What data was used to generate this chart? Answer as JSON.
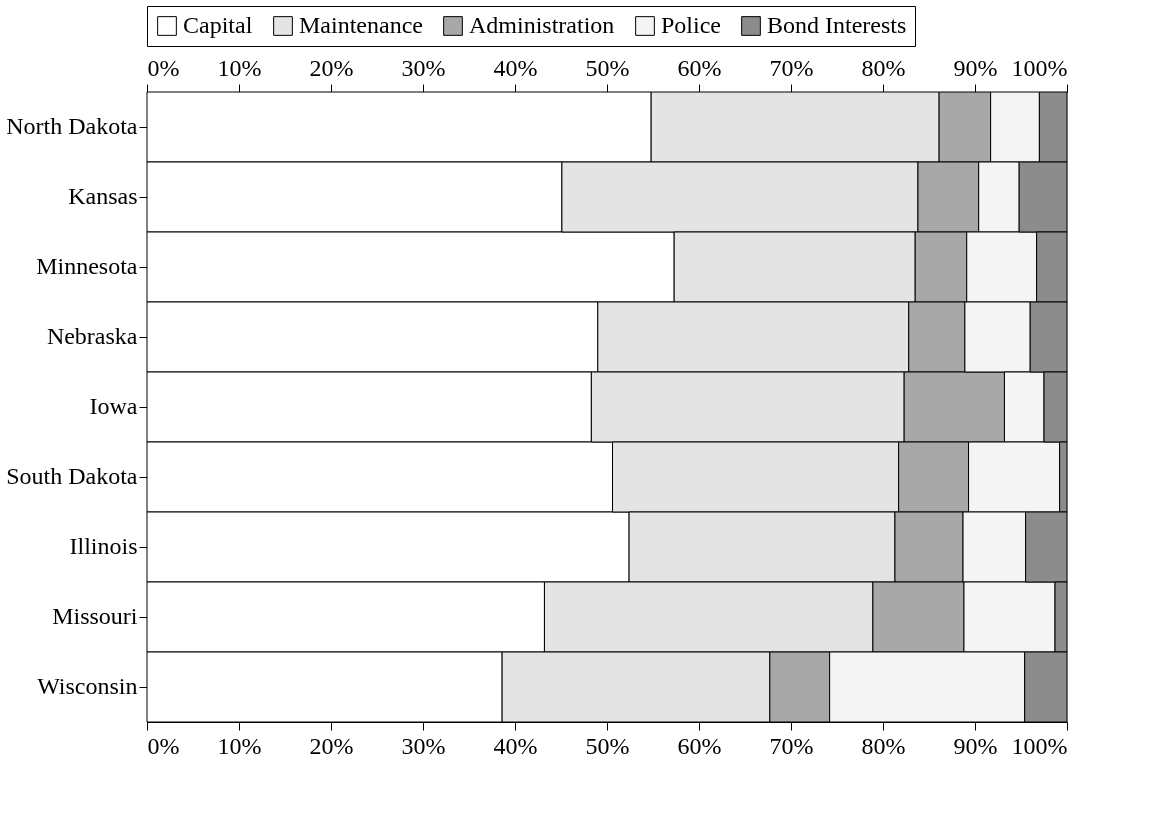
{
  "chart_data": {
    "type": "bar",
    "orientation": "horizontal",
    "stacked": true,
    "categories": [
      "North Dakota",
      "Kansas",
      "Minnesota",
      "Nebraska",
      "Iowa",
      "South Dakota",
      "Illinois",
      "Missouri",
      "Wisconsin"
    ],
    "series": [
      {
        "name": "Capital",
        "color": "#ffffff",
        "values": [
          54.8,
          45.1,
          57.3,
          49.0,
          48.3,
          50.6,
          52.4,
          43.2,
          38.6
        ]
      },
      {
        "name": "Maintenance",
        "color": "#e4e4e4",
        "values": [
          31.3,
          38.7,
          26.2,
          33.8,
          34.0,
          31.1,
          28.9,
          35.7,
          29.1
        ]
      },
      {
        "name": "Administration",
        "color": "#a8a8a8",
        "values": [
          5.6,
          6.6,
          5.6,
          6.1,
          10.9,
          7.6,
          7.4,
          9.9,
          6.5
        ]
      },
      {
        "name": "Police",
        "color": "#f4f4f4",
        "values": [
          5.3,
          4.4,
          7.6,
          7.1,
          4.3,
          9.9,
          6.8,
          9.9,
          21.2
        ]
      },
      {
        "name": "Bond Interests",
        "color": "#8c8c8c",
        "values": [
          3.0,
          5.2,
          3.3,
          4.0,
          2.5,
          0.8,
          4.5,
          1.3,
          4.6
        ]
      }
    ],
    "xlim": [
      0,
      100
    ],
    "xticks": [
      {
        "value": 0,
        "label": "0%"
      },
      {
        "value": 10,
        "label": "10%"
      },
      {
        "value": 20,
        "label": "20%"
      },
      {
        "value": 30,
        "label": "30%"
      },
      {
        "value": 40,
        "label": "40%"
      },
      {
        "value": 50,
        "label": "50%"
      },
      {
        "value": 60,
        "label": "60%"
      },
      {
        "value": 70,
        "label": "70%"
      },
      {
        "value": 80,
        "label": "80%"
      },
      {
        "value": 90,
        "label": "90%"
      },
      {
        "value": 100,
        "label": "100%"
      }
    ],
    "x2lim": [
      0,
      100
    ],
    "x2ticks": [
      {
        "value": 0,
        "label": "0%"
      },
      {
        "value": 10,
        "label": "10%"
      },
      {
        "value": 20,
        "label": "20%"
      },
      {
        "value": 30,
        "label": "30%"
      },
      {
        "value": 40,
        "label": "40%"
      },
      {
        "value": 50,
        "label": "50%"
      },
      {
        "value": 60,
        "label": "60%"
      },
      {
        "value": 70,
        "label": "70%"
      },
      {
        "value": 80,
        "label": "80%"
      },
      {
        "value": 90,
        "label": "90%"
      },
      {
        "value": 100,
        "label": "100%"
      }
    ],
    "legend": "top"
  }
}
